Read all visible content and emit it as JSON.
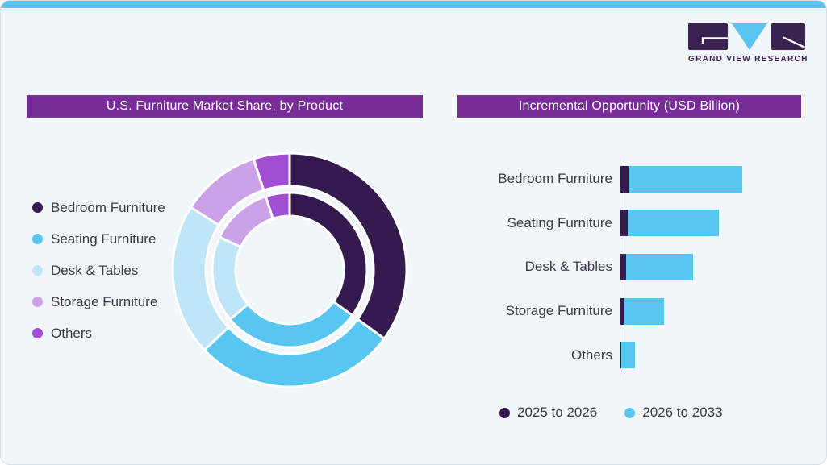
{
  "brand": {
    "logo_text": "GRAND VIEW RESEARCH",
    "logo_purple": "#3A2353",
    "logo_blue": "#59C5F0"
  },
  "colors": {
    "background": "#F1F6FA",
    "top_strip": "#59C5F0",
    "title_bar": "#772C97",
    "title_text": "#FFFFFF",
    "body_text": "#3C3B45",
    "axis_line": "#DDE3E9",
    "segment_gap": "#FFFFFF"
  },
  "left_panel": {
    "title": "U.S. Furniture Market Share, by Product",
    "legend": [
      {
        "label": "Bedroom Furniture",
        "color": "#341A4E"
      },
      {
        "label": "Seating Furniture",
        "color": "#57C6F0"
      },
      {
        "label": "Desk & Tables",
        "color": "#BFE5F8"
      },
      {
        "label": "Storage Furniture",
        "color": "#CBA2E8"
      },
      {
        "label": "Others",
        "color": "#A04ED4"
      }
    ]
  },
  "right_panel": {
    "title": "Incremental Opportunity (USD Billion)",
    "legend": [
      {
        "label": "2025 to 2026",
        "color": "#341A4E"
      },
      {
        "label": "2026 to 2033",
        "color": "#57C6F0"
      }
    ]
  },
  "chart_data": [
    {
      "type": "pie",
      "variant": "double_ring_donut",
      "title": "U.S. Furniture Market Share, by Product",
      "unit": "percent_estimated_from_arc_angles",
      "categories": [
        "Bedroom Furniture",
        "Seating Furniture",
        "Desk & Tables",
        "Storage Furniture",
        "Others"
      ],
      "series": [
        {
          "name": "outer_ring",
          "values": [
            35,
            28,
            21,
            11,
            5
          ]
        },
        {
          "name": "inner_ring",
          "values": [
            35,
            29,
            18,
            13,
            5
          ]
        }
      ],
      "colors": [
        "#341A4E",
        "#57C6F0",
        "#BFE5F8",
        "#CBA2E8",
        "#A04ED4"
      ],
      "start_angle_deg": 0,
      "direction": "clockwise",
      "legend_position": "left"
    },
    {
      "type": "bar",
      "variant": "horizontal_stacked",
      "title": "Incremental Opportunity (USD Billion)",
      "note": "axis has no numeric labels; values are relative units estimated from bar lengths (longest bar total = 100)",
      "categories": [
        "Bedroom Furniture",
        "Seating Furniture",
        "Desk & Tables",
        "Storage Furniture",
        "Others"
      ],
      "series": [
        {
          "name": "2025 to 2026",
          "color": "#341A4E",
          "values": [
            7.5,
            6.0,
            4.5,
            2.5,
            0.5
          ]
        },
        {
          "name": "2026 to 2033",
          "color": "#57C6F0",
          "values": [
            92.5,
            74.5,
            55.0,
            33.5,
            11.5
          ]
        }
      ],
      "xlim": [
        0,
        100
      ],
      "grid": false,
      "legend_position": "bottom"
    }
  ]
}
